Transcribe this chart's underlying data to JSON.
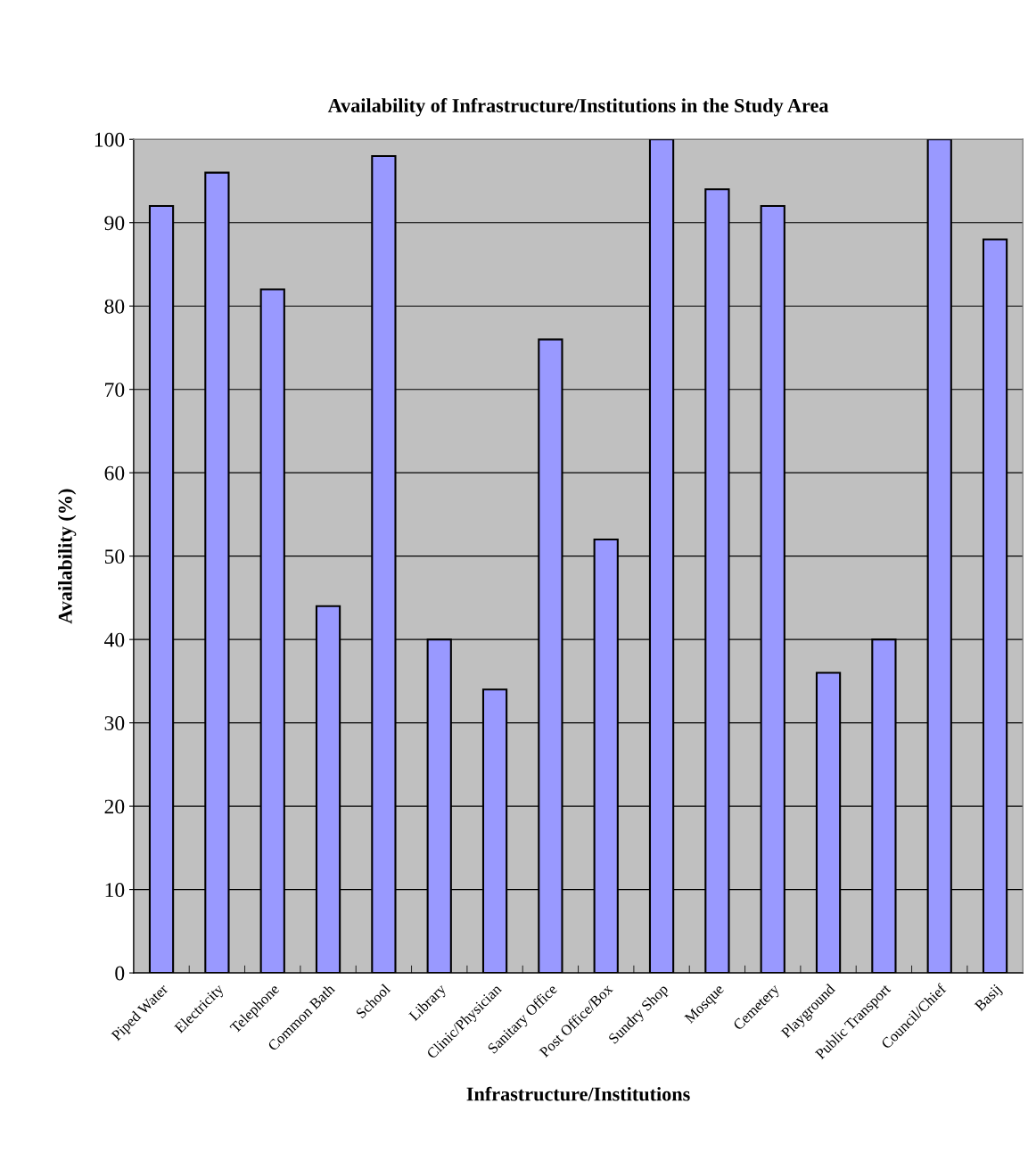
{
  "chart_data": {
    "type": "bar",
    "title": "Availability of Infrastructure/Institutions in the Study Area",
    "xlabel": "Infrastructure/Institutions",
    "ylabel": "Availability (%)",
    "categories": [
      "Piped Water",
      "Electricity",
      "Telephone",
      "Common Bath",
      "School",
      "Library",
      "Clinic/Physician",
      "Sanitary Office",
      "Post Office/Box",
      "Sundry Shop",
      "Mosque",
      "Cemetery",
      "Playground",
      "Public Transport",
      "Council/Chief",
      "Basij"
    ],
    "values": [
      92,
      96,
      82,
      44,
      98,
      40,
      34,
      76,
      52,
      100,
      94,
      92,
      36,
      40,
      100,
      88
    ],
    "color": "#9999ff",
    "ylim": [
      0,
      100
    ],
    "yticks": [
      0,
      10,
      20,
      30,
      40,
      50,
      60,
      70,
      80,
      90,
      100
    ],
    "grid": "y",
    "legend": false
  }
}
